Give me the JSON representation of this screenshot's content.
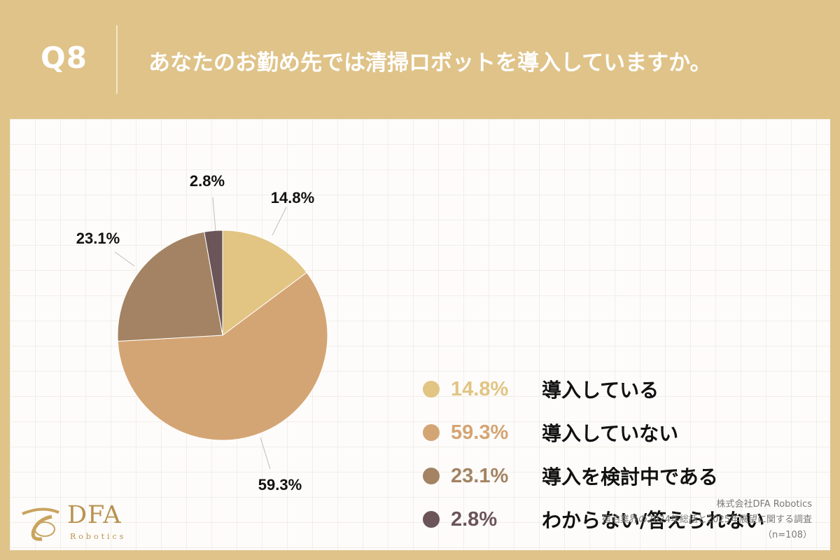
{
  "header": {
    "qnum": "Q8",
    "question": "あなたのお勤め先では清掃ロボットを導入していますか。"
  },
  "chart_data": {
    "type": "pie",
    "title": "",
    "slices": [
      {
        "label": "導入している",
        "value": 14.8,
        "value_label": "14.8%",
        "color": "#e2c483"
      },
      {
        "label": "導入していない",
        "value": 59.3,
        "value_label": "59.3%",
        "color": "#d4a574"
      },
      {
        "label": "導入を検討中である",
        "value": 23.1,
        "value_label": "23.1%",
        "color": "#a38363"
      },
      {
        "label": "わからない/答えられない",
        "value": 2.8,
        "value_label": "2.8%",
        "color": "#6b5558"
      }
    ],
    "legend_placement": "right"
  },
  "logo": {
    "title": "DFA",
    "subtitle": "Robotics"
  },
  "source": {
    "line1": "株式会社DFA Robotics",
    "line2": "宿泊業界の2024年総括と2025年展望に関する調査",
    "line3": "（n=108）"
  }
}
